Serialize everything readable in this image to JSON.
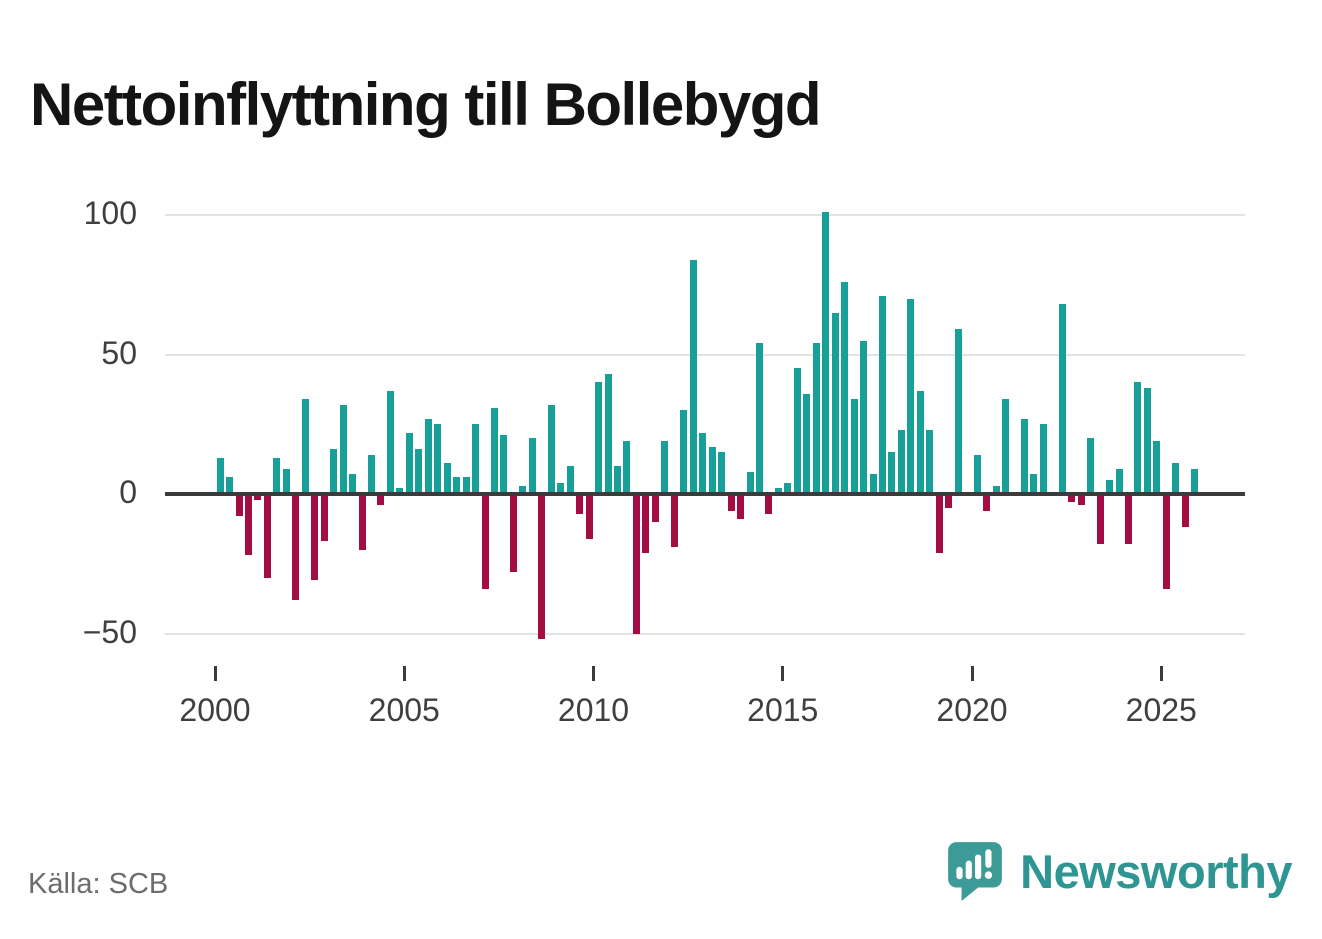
{
  "title": "Nettoinflyttning till Bollebygd",
  "source": "Källa: SCB",
  "brand": {
    "name": "Newsworthy"
  },
  "colors": {
    "positive": "#16A098",
    "negative": "#A40D44",
    "axis": "#3B3B3B",
    "grid": "#E3E3E3",
    "title": "#141414",
    "tick_label": "#3F3F3F",
    "source_text": "#6C6C6C",
    "brand_text": "#2E9592",
    "logo_mark": "#3C9B97",
    "background": "#FFFFFF"
  },
  "chart_data": {
    "type": "bar",
    "title": "Nettoinflyttning till Bollebygd",
    "period": "quarterly",
    "start_year": 2000,
    "values": [
      13,
      6,
      -8,
      -22,
      -2,
      -30,
      13,
      9,
      -38,
      34,
      -31,
      -17,
      16,
      32,
      7,
      -20,
      14,
      -4,
      37,
      2,
      22,
      16,
      27,
      25,
      11,
      6,
      6,
      25,
      -34,
      31,
      21,
      -28,
      3,
      20,
      -52,
      32,
      4,
      10,
      -7,
      -16,
      40,
      43,
      10,
      19,
      -50,
      -21,
      -10,
      19,
      -19,
      30,
      84,
      22,
      17,
      15,
      -6,
      -9,
      8,
      54,
      -7,
      2,
      4,
      45,
      36,
      54,
      101,
      65,
      76,
      34,
      55,
      7,
      71,
      15,
      23,
      70,
      37,
      23,
      -21,
      -5,
      59,
      0,
      14,
      -6,
      3,
      34,
      0,
      27,
      7,
      25,
      0,
      68,
      -3,
      -4,
      20,
      -18,
      5,
      9,
      -18,
      40,
      38,
      19,
      -34,
      11,
      -12,
      9
    ],
    "x_tick_labels": [
      "2000",
      "2005",
      "2010",
      "2015",
      "2020",
      "2025"
    ],
    "y_ticks": [
      100,
      50,
      0,
      -50
    ],
    "y_tick_labels": [
      "100",
      "50",
      "0",
      "−50"
    ],
    "ylim": [
      -55,
      105
    ],
    "grid": true,
    "legend": false,
    "xlabel": "",
    "ylabel": ""
  }
}
